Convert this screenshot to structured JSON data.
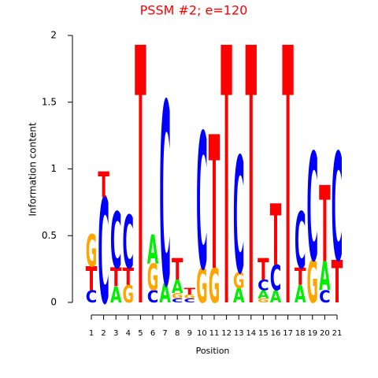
{
  "chart_data": {
    "type": "logo",
    "title": "PSSM #2; e=120",
    "title_color": "#ff0000",
    "xlabel": "Position",
    "ylabel": "Information content",
    "categories": [
      "1",
      "2",
      "3",
      "4",
      "5",
      "6",
      "7",
      "8",
      "9",
      "10",
      "11",
      "12",
      "13",
      "14",
      "15",
      "16",
      "17",
      "18",
      "19",
      "20",
      "21"
    ],
    "ylim": [
      0,
      2
    ],
    "yticks": [
      0,
      0.5,
      1,
      1.5,
      2
    ],
    "colors": {
      "A": "#00ee00",
      "C": "#0000ff",
      "G": "#ffa500",
      "T": "#ff0000"
    },
    "stacks": [
      [
        {
          "letter": "C",
          "height": 0.09
        },
        {
          "letter": "T",
          "height": 0.18
        },
        {
          "letter": "G",
          "height": 0.24
        }
      ],
      [
        {
          "letter": "C",
          "height": 0.79
        },
        {
          "letter": "T",
          "height": 0.19
        }
      ],
      [
        {
          "letter": "A",
          "height": 0.12
        },
        {
          "letter": "T",
          "height": 0.14
        },
        {
          "letter": "C",
          "height": 0.42
        }
      ],
      [
        {
          "letter": "G",
          "height": 0.13
        },
        {
          "letter": "T",
          "height": 0.13
        },
        {
          "letter": "C",
          "height": 0.4
        }
      ],
      [
        {
          "letter": "T",
          "height": 1.93
        }
      ],
      [
        {
          "letter": "C",
          "height": 0.09
        },
        {
          "letter": "G",
          "height": 0.2
        },
        {
          "letter": "A",
          "height": 0.22
        }
      ],
      [
        {
          "letter": "A",
          "height": 0.14
        },
        {
          "letter": "C",
          "height": 1.37
        }
      ],
      [
        {
          "letter": "C",
          "height": 0.03
        },
        {
          "letter": "G",
          "height": 0.04
        },
        {
          "letter": "A",
          "height": 0.1
        },
        {
          "letter": "T",
          "height": 0.16
        }
      ],
      [
        {
          "letter": "C",
          "height": 0.03
        },
        {
          "letter": "G",
          "height": 0.03
        },
        {
          "letter": "T",
          "height": 0.05
        }
      ],
      [
        {
          "letter": "G",
          "height": 0.26
        },
        {
          "letter": "C",
          "height": 1.02
        }
      ],
      [
        {
          "letter": "G",
          "height": 0.26
        },
        {
          "letter": "T",
          "height": 1.0
        }
      ],
      [
        {
          "letter": "T",
          "height": 1.93
        }
      ],
      [
        {
          "letter": "A",
          "height": 0.11
        },
        {
          "letter": "G",
          "height": 0.12
        },
        {
          "letter": "C",
          "height": 0.87
        }
      ],
      [
        {
          "letter": "T",
          "height": 1.93
        }
      ],
      [
        {
          "letter": "G",
          "height": 0.03
        },
        {
          "letter": "A",
          "height": 0.06
        },
        {
          "letter": "C",
          "height": 0.08
        },
        {
          "letter": "T",
          "height": 0.16
        }
      ],
      [
        {
          "letter": "A",
          "height": 0.09
        },
        {
          "letter": "C",
          "height": 0.19
        },
        {
          "letter": "T",
          "height": 0.46
        }
      ],
      [
        {
          "letter": "T",
          "height": 1.93
        }
      ],
      [
        {
          "letter": "A",
          "height": 0.13
        },
        {
          "letter": "T",
          "height": 0.13
        },
        {
          "letter": "C",
          "height": 0.42
        }
      ],
      [
        {
          "letter": "G",
          "height": 0.32
        },
        {
          "letter": "C",
          "height": 0.81
        }
      ],
      [
        {
          "letter": "C",
          "height": 0.09
        },
        {
          "letter": "A",
          "height": 0.22
        },
        {
          "letter": "T",
          "height": 0.57
        }
      ],
      [
        {
          "letter": "T",
          "height": 0.32
        },
        {
          "letter": "C",
          "height": 0.81
        }
      ]
    ]
  }
}
